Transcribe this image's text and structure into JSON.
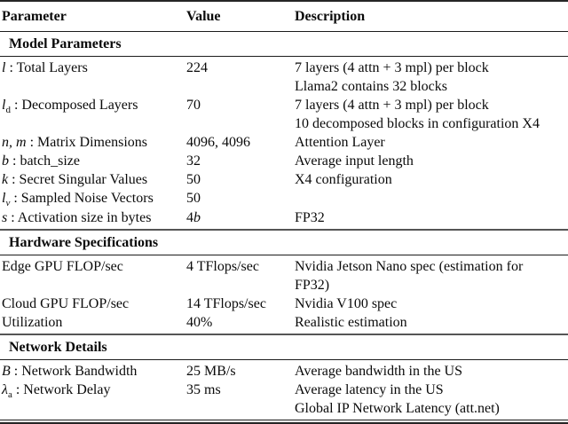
{
  "header": {
    "col1": "Parameter",
    "col2": "Value",
    "col3": "Description"
  },
  "sections": [
    {
      "title": "Model Parameters",
      "rows": [
        {
          "var": "l",
          "label": ": Total Layers",
          "value": "224",
          "desc1": "7 layers (4 attn + 3 mpl) per block",
          "desc2": "Llama2 contains 32 blocks"
        },
        {
          "var": "l",
          "sub": "d",
          "label": ": Decomposed Layers",
          "value": "70",
          "desc1": "7 layers (4 attn + 3 mpl) per block",
          "desc2": "10 decomposed blocks in configuration X4"
        },
        {
          "var": "n, m",
          "label": ": Matrix Dimensions",
          "value": "4096, 4096",
          "desc1": "Attention Layer"
        },
        {
          "var": "b",
          "label": ": batch_size",
          "value": "32",
          "desc1": "Average input length"
        },
        {
          "var": "k",
          "label": ": Secret Singular Values",
          "value": "50",
          "desc1": "X4 configuration"
        },
        {
          "var": "l",
          "sub": "v",
          "label": ": Sampled Noise Vectors",
          "value": "50"
        },
        {
          "var": "s",
          "label": ": Activation size in bytes",
          "value_pre": "4",
          "value_it": "b",
          "desc1": "FP32"
        }
      ]
    },
    {
      "title": "Hardware Specifications",
      "rows": [
        {
          "label": "Edge GPU FLOP/sec",
          "value": "4 TFlops/sec",
          "desc1": "Nvidia Jetson Nano spec (estimation for",
          "desc2": "FP32)"
        },
        {
          "label": "Cloud GPU FLOP/sec",
          "value": "14 TFlops/sec",
          "desc1": "Nvidia V100 spec"
        },
        {
          "label": "Utilization",
          "value": "40%",
          "desc1": "Realistic estimation"
        }
      ]
    },
    {
      "title": "Network Details",
      "rows": [
        {
          "var": "B",
          "label": ": Network Bandwidth",
          "value": "25 MB/s",
          "desc1": "Average bandwidth in the US"
        },
        {
          "var": "λ",
          "sub": "a",
          "label": ": Network Delay",
          "value": "35 ms",
          "desc1": "Average latency in the US",
          "desc2": "Global IP Network Latency (att.net)"
        }
      ]
    }
  ]
}
